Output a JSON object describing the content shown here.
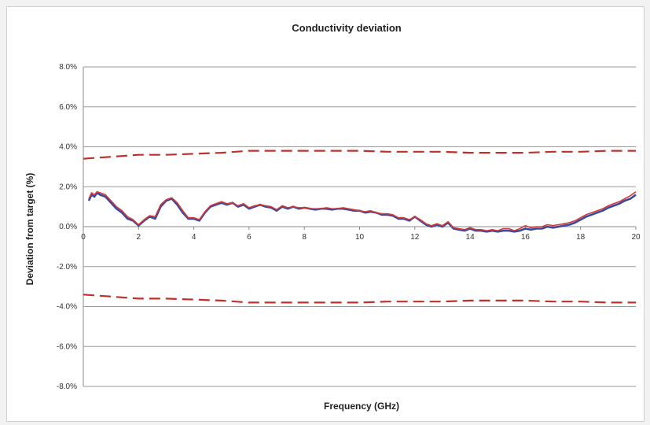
{
  "chart_data": {
    "type": "line",
    "title": "Conductivity deviation",
    "xlabel": "Frequency (GHz)",
    "ylabel": "Deviation from target (%)",
    "xlim": [
      0,
      20
    ],
    "ylim": [
      -8,
      8
    ],
    "x_ticks": [
      0,
      2,
      4,
      6,
      8,
      10,
      12,
      14,
      16,
      18,
      20
    ],
    "x_tick_labels": [
      "0",
      "2",
      "4",
      "6",
      "8",
      "10",
      "12",
      "14",
      "16",
      "18",
      "20"
    ],
    "y_ticks": [
      8,
      6,
      4,
      2,
      0,
      -2,
      -4,
      -6,
      -8
    ],
    "y_tick_labels": [
      "8.0%",
      "6.0%",
      "4.0%",
      "2.0%",
      "0.0%",
      "-2.0%",
      "-4.0%",
      "-6.0%",
      "-8.0%"
    ],
    "grid": "horizontal",
    "colors": {
      "limit": "#c0302a",
      "measured": "#3b4a9c",
      "target": "#d23a3a",
      "grid": "#9a9a9a",
      "axis": "#888888"
    },
    "series": [
      {
        "role": "upper-limit",
        "style": "dashed",
        "x": [
          0,
          1,
          2,
          3,
          4,
          5,
          6,
          7,
          8,
          9,
          10,
          11,
          12,
          13,
          14,
          15,
          16,
          17,
          18,
          19,
          20
        ],
        "values": [
          3.4,
          3.5,
          3.6,
          3.6,
          3.65,
          3.7,
          3.8,
          3.8,
          3.8,
          3.8,
          3.8,
          3.75,
          3.75,
          3.75,
          3.7,
          3.7,
          3.7,
          3.75,
          3.75,
          3.8,
          3.8
        ]
      },
      {
        "role": "lower-limit",
        "style": "dashed",
        "x": [
          0,
          1,
          2,
          3,
          4,
          5,
          6,
          7,
          8,
          9,
          10,
          11,
          12,
          13,
          14,
          15,
          16,
          17,
          18,
          19,
          20
        ],
        "values": [
          -3.4,
          -3.5,
          -3.6,
          -3.6,
          -3.65,
          -3.7,
          -3.8,
          -3.8,
          -3.8,
          -3.8,
          -3.8,
          -3.75,
          -3.75,
          -3.75,
          -3.7,
          -3.7,
          -3.7,
          -3.75,
          -3.75,
          -3.8,
          -3.8
        ]
      },
      {
        "role": "measured",
        "style": "solid",
        "x": [
          0.2,
          0.3,
          0.4,
          0.5,
          0.6,
          0.8,
          1.0,
          1.2,
          1.4,
          1.6,
          1.8,
          2.0,
          2.2,
          2.4,
          2.6,
          2.8,
          3.0,
          3.2,
          3.4,
          3.6,
          3.8,
          4.0,
          4.2,
          4.4,
          4.6,
          4.8,
          5.0,
          5.2,
          5.4,
          5.6,
          5.8,
          6.0,
          6.2,
          6.4,
          6.6,
          6.8,
          7.0,
          7.2,
          7.4,
          7.6,
          7.8,
          8.0,
          8.2,
          8.4,
          8.6,
          8.8,
          9.0,
          9.2,
          9.4,
          9.6,
          9.8,
          10.0,
          10.2,
          10.4,
          10.6,
          10.8,
          11.0,
          11.2,
          11.4,
          11.6,
          11.8,
          12.0,
          12.2,
          12.4,
          12.6,
          12.8,
          13.0,
          13.2,
          13.4,
          13.6,
          13.8,
          14.0,
          14.2,
          14.4,
          14.6,
          14.8,
          15.0,
          15.2,
          15.4,
          15.6,
          15.8,
          16.0,
          16.2,
          16.4,
          16.6,
          16.8,
          17.0,
          17.2,
          17.4,
          17.6,
          17.8,
          18.0,
          18.2,
          18.4,
          18.6,
          18.8,
          19.0,
          19.2,
          19.4,
          19.6,
          19.8,
          20.0
        ],
        "values": [
          1.3,
          1.6,
          1.5,
          1.7,
          1.6,
          1.5,
          1.2,
          0.9,
          0.7,
          0.4,
          0.3,
          0.05,
          0.3,
          0.5,
          0.4,
          1.0,
          1.3,
          1.4,
          1.1,
          0.7,
          0.4,
          0.4,
          0.3,
          0.7,
          1.0,
          1.1,
          1.2,
          1.1,
          1.2,
          1.0,
          1.1,
          0.9,
          1.0,
          1.1,
          1.0,
          0.95,
          0.8,
          1.0,
          0.9,
          1.0,
          0.9,
          0.95,
          0.9,
          0.85,
          0.9,
          0.9,
          0.85,
          0.9,
          0.9,
          0.85,
          0.8,
          0.8,
          0.7,
          0.75,
          0.7,
          0.6,
          0.6,
          0.55,
          0.4,
          0.4,
          0.3,
          0.5,
          0.3,
          0.1,
          0.0,
          0.1,
          0.0,
          0.2,
          -0.1,
          -0.15,
          -0.2,
          -0.1,
          -0.2,
          -0.2,
          -0.25,
          -0.2,
          -0.25,
          -0.2,
          -0.2,
          -0.25,
          -0.2,
          -0.1,
          -0.15,
          -0.1,
          -0.1,
          0.0,
          -0.05,
          0.0,
          0.05,
          0.1,
          0.2,
          0.35,
          0.5,
          0.6,
          0.7,
          0.8,
          0.95,
          1.05,
          1.15,
          1.3,
          1.4,
          1.6
        ]
      },
      {
        "role": "measured-2",
        "style": "solid",
        "x": [
          0.2,
          0.3,
          0.4,
          0.5,
          0.6,
          0.8,
          1.0,
          1.2,
          1.4,
          1.6,
          1.8,
          2.0,
          2.2,
          2.4,
          2.6,
          2.8,
          3.0,
          3.2,
          3.4,
          3.6,
          3.8,
          4.0,
          4.2,
          4.4,
          4.6,
          4.8,
          5.0,
          5.2,
          5.4,
          5.6,
          5.8,
          6.0,
          6.2,
          6.4,
          6.6,
          6.8,
          7.0,
          7.2,
          7.4,
          7.6,
          7.8,
          8.0,
          8.2,
          8.4,
          8.6,
          8.8,
          9.0,
          9.2,
          9.4,
          9.6,
          9.8,
          10.0,
          10.2,
          10.4,
          10.6,
          10.8,
          11.0,
          11.2,
          11.4,
          11.6,
          11.8,
          12.0,
          12.2,
          12.4,
          12.6,
          12.8,
          13.0,
          13.2,
          13.4,
          13.6,
          13.8,
          14.0,
          14.2,
          14.4,
          14.6,
          14.8,
          15.0,
          15.2,
          15.4,
          15.6,
          15.8,
          16.0,
          16.2,
          16.4,
          16.6,
          16.8,
          17.0,
          17.2,
          17.4,
          17.6,
          17.8,
          18.0,
          18.2,
          18.4,
          18.6,
          18.8,
          19.0,
          19.2,
          19.4,
          19.6,
          19.8,
          20.0
        ],
        "values": [
          1.4,
          1.7,
          1.6,
          1.75,
          1.7,
          1.6,
          1.3,
          1.0,
          0.8,
          0.5,
          0.35,
          0.1,
          0.35,
          0.55,
          0.5,
          1.1,
          1.35,
          1.45,
          1.2,
          0.8,
          0.45,
          0.45,
          0.35,
          0.75,
          1.05,
          1.15,
          1.25,
          1.15,
          1.2,
          1.05,
          1.15,
          0.95,
          1.05,
          1.1,
          1.05,
          1.0,
          0.85,
          1.05,
          0.95,
          1.0,
          0.95,
          0.95,
          0.9,
          0.9,
          0.9,
          0.95,
          0.9,
          0.9,
          0.95,
          0.9,
          0.85,
          0.8,
          0.75,
          0.8,
          0.7,
          0.65,
          0.65,
          0.6,
          0.45,
          0.45,
          0.35,
          0.5,
          0.35,
          0.15,
          0.05,
          0.15,
          0.05,
          0.25,
          -0.05,
          -0.1,
          -0.15,
          -0.05,
          -0.15,
          -0.15,
          -0.2,
          -0.15,
          -0.2,
          -0.1,
          -0.1,
          -0.2,
          -0.1,
          0.05,
          -0.05,
          0.0,
          0.0,
          0.1,
          0.05,
          0.1,
          0.15,
          0.2,
          0.3,
          0.45,
          0.6,
          0.7,
          0.8,
          0.9,
          1.05,
          1.15,
          1.25,
          1.4,
          1.55,
          1.75
        ]
      }
    ]
  }
}
